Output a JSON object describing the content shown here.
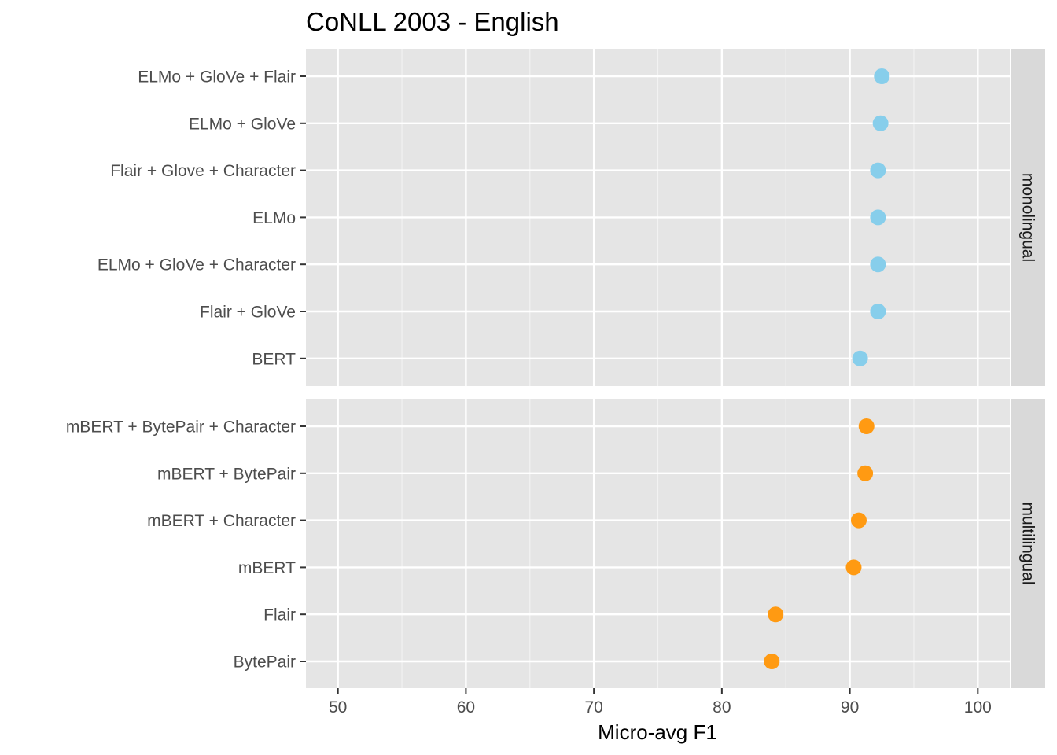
{
  "chart_data": {
    "type": "scatter",
    "title": "CoNLL 2003 - English",
    "xlabel": "Micro-avg F1",
    "ylabel": "",
    "xlim": [
      47.5,
      102.5
    ],
    "x_ticks": [
      50,
      60,
      70,
      80,
      90,
      100
    ],
    "grid": true,
    "panels": [
      {
        "name": "monolingual",
        "color": "#87CEEB",
        "categories": [
          "ELMo + GloVe + Flair",
          "ELMo + GloVe",
          "Flair + Glove + Character",
          "ELMo",
          "ELMo + GloVe + Character",
          "Flair + GloVe",
          "BERT"
        ],
        "values": [
          92.5,
          92.4,
          92.2,
          92.2,
          92.2,
          92.2,
          90.8
        ]
      },
      {
        "name": "multilingual",
        "color": "#FF9A12",
        "categories": [
          "mBERT + BytePair + Character",
          "mBERT + BytePair",
          "mBERT + Character",
          "mBERT",
          "Flair",
          "BytePair"
        ],
        "values": [
          91.3,
          91.2,
          90.7,
          90.3,
          84.2,
          83.9
        ]
      }
    ]
  }
}
